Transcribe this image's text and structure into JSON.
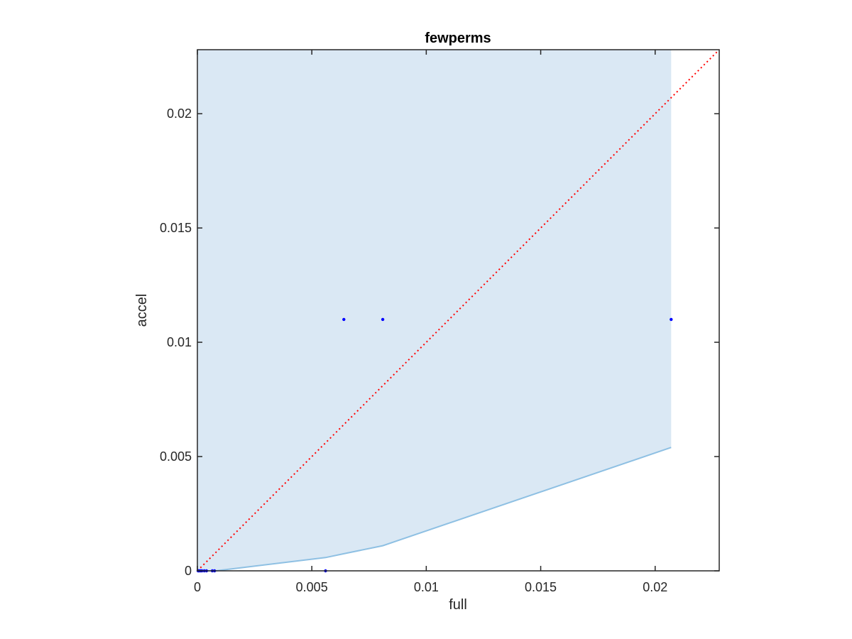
{
  "chart_data": {
    "type": "scatter",
    "title": "fewperms",
    "xlabel": "full",
    "ylabel": "accel",
    "xlim": [
      0,
      0.0228
    ],
    "ylim": [
      0,
      0.0228
    ],
    "x_ticks": [
      0,
      0.005,
      0.01,
      0.015,
      0.02
    ],
    "y_ticks": [
      0,
      0.005,
      0.01,
      0.015,
      0.02
    ],
    "x_tick_labels": [
      "0",
      "0.005",
      "0.01",
      "0.015",
      "0.02"
    ],
    "y_tick_labels": [
      "0",
      "0.005",
      "0.01",
      "0.015",
      "0.02"
    ],
    "grid": false,
    "box": true,
    "shaded_region": {
      "color": "#dae8f4",
      "edge_color": "#8ec0e3",
      "upper": [
        [
          0,
          0.0228
        ],
        [
          0.0207,
          0.0228
        ]
      ],
      "lower": [
        [
          0,
          0
        ],
        [
          0.0008,
          0
        ],
        [
          0.0056,
          0.00058
        ],
        [
          0.0064,
          0.00075
        ],
        [
          0.0081,
          0.0011
        ],
        [
          0.0207,
          0.0054
        ]
      ]
    },
    "reference_line": {
      "style": "dotted",
      "color": "#ff0000",
      "points": [
        [
          0,
          0
        ],
        [
          0.0228,
          0.0228
        ]
      ]
    },
    "series": [
      {
        "color": "#0000ff",
        "x": [
          3e-05,
          6e-05,
          0.0001,
          0.00015,
          0.0002,
          0.0003,
          0.0004,
          0.00065,
          0.00075,
          0.0056,
          0.0064,
          0.0081,
          0.0207
        ],
        "y": [
          0,
          0,
          0,
          0,
          0,
          0,
          0,
          0,
          0,
          0,
          0.011,
          0.011,
          0.011
        ]
      }
    ]
  }
}
